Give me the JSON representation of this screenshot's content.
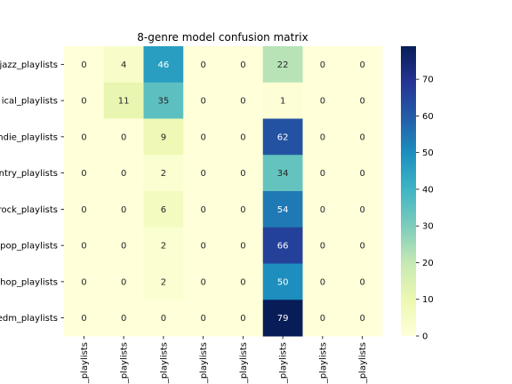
{
  "chart_data": {
    "type": "heatmap",
    "title": "8-genre model confusion matrix",
    "row_labels": [
      "jazz_playlists",
      "classical_playlists",
      "indie_playlists",
      "country_playlists",
      "rock_playlists",
      "pop_playlists",
      "hiphop_playlists",
      "edm_playlists"
    ],
    "row_labels_visible": [
      "jazz_playlists",
      "ical_playlists",
      "indie_playlists",
      "ntry_playlists",
      "rock_playlists",
      "pop_playlists",
      "hop_playlists",
      "edm_playlists"
    ],
    "col_labels_visible": [
      "_playlists",
      "_playlists",
      "_playlists",
      "_playlists",
      "_playlists",
      "_playlists",
      "_playlists",
      "_playlists"
    ],
    "values": [
      [
        0,
        4,
        46,
        0,
        0,
        22,
        0,
        0
      ],
      [
        0,
        11,
        35,
        0,
        0,
        1,
        0,
        0
      ],
      [
        0,
        0,
        9,
        0,
        0,
        62,
        0,
        0
      ],
      [
        0,
        0,
        2,
        0,
        0,
        34,
        0,
        0
      ],
      [
        0,
        0,
        6,
        0,
        0,
        54,
        0,
        0
      ],
      [
        0,
        0,
        2,
        0,
        0,
        66,
        0,
        0
      ],
      [
        0,
        0,
        2,
        0,
        0,
        50,
        0,
        0
      ],
      [
        0,
        0,
        0,
        0,
        0,
        79,
        0,
        0
      ]
    ],
    "colormap": "YlGnBu",
    "vmin": 0,
    "vmax": 79,
    "colorbar_ticks": [
      0,
      10,
      20,
      30,
      40,
      50,
      60,
      70
    ]
  }
}
